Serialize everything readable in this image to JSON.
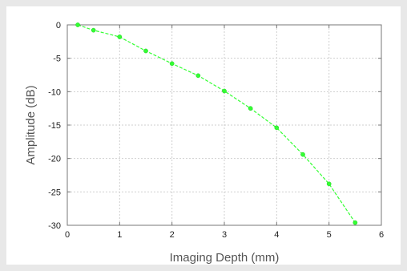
{
  "chart_data": {
    "type": "line",
    "title": "",
    "xlabel": "Imaging Depth (mm)",
    "ylabel": "Amplitude (dB)",
    "xlim": [
      0,
      6
    ],
    "ylim": [
      -30,
      0
    ],
    "xticks": [
      "0",
      "1",
      "2",
      "3",
      "4",
      "5",
      "6"
    ],
    "yticks": [
      "0",
      "-5",
      "-10",
      "-15",
      "-20",
      "-25",
      "-30"
    ],
    "grid": true,
    "legend": "none",
    "line_style": "dashed",
    "series": [
      {
        "color": "#33ff33",
        "x": [
          0.2,
          0.5,
          1.0,
          1.5,
          2.0,
          2.5,
          3.0,
          3.5,
          4.0,
          4.5,
          5.0,
          5.5
        ],
        "y": [
          0,
          -0.8,
          -1.8,
          -3.9,
          -5.8,
          -7.6,
          -9.9,
          -12.5,
          -15.4,
          -19.4,
          -23.8,
          -29.6
        ]
      }
    ]
  }
}
